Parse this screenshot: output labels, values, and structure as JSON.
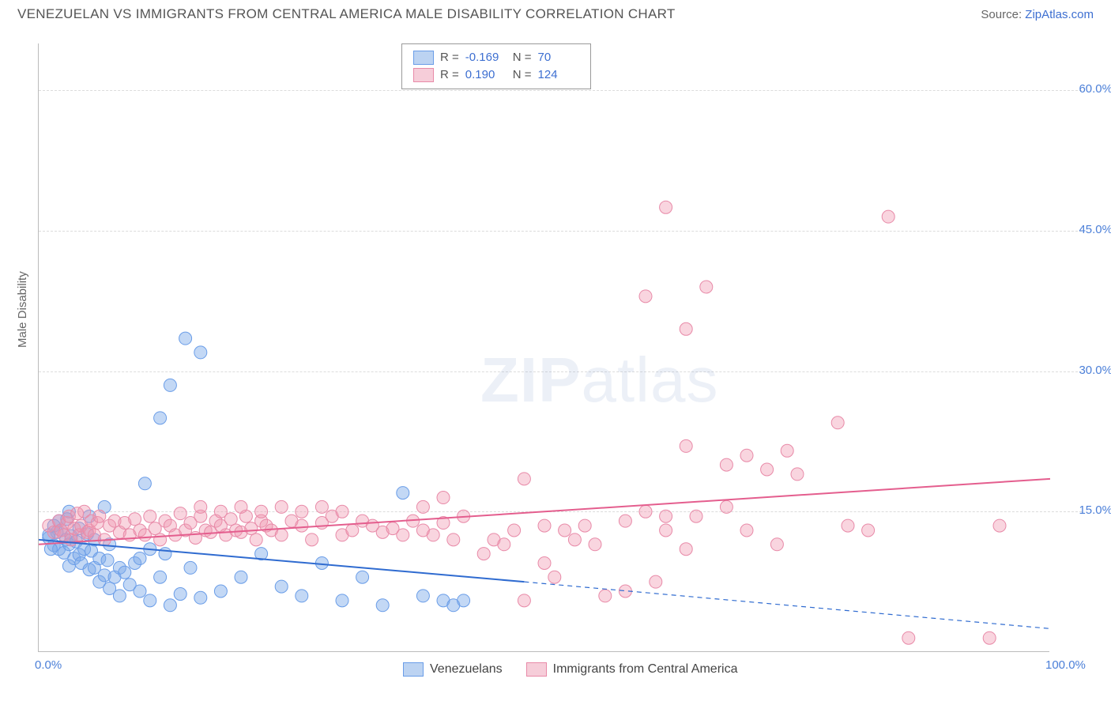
{
  "title": "VENEZUELAN VS IMMIGRANTS FROM CENTRAL AMERICA MALE DISABILITY CORRELATION CHART",
  "source_label": "Source:",
  "source_name": "ZipAtlas.com",
  "y_axis_title": "Male Disability",
  "watermark_a": "ZIP",
  "watermark_b": "atlas",
  "chart": {
    "type": "scatter",
    "xlim": [
      0,
      100
    ],
    "ylim": [
      0,
      65
    ],
    "y_ticks": [
      15,
      30,
      45,
      60
    ],
    "y_tick_labels": [
      "15.0%",
      "30.0%",
      "45.0%",
      "60.0%"
    ],
    "x_tick_labels": {
      "min": "0.0%",
      "max": "100.0%"
    },
    "grid_color": "#dcdcdc",
    "background_color": "#ffffff",
    "series": [
      {
        "name": "Venezuelans",
        "color_fill": "rgba(122,169,232,0.45)",
        "color_stroke": "#6a9de8",
        "marker_radius": 8,
        "trend": {
          "x1": 0,
          "y1": 12.0,
          "x2": 48,
          "y2": 7.5,
          "x3": 100,
          "y3": 2.5,
          "color": "#2f6bd0",
          "width": 2
        },
        "R_label": "R =",
        "R_value": "-0.169",
        "N_label": "N =",
        "N_value": "70",
        "swatch_fill": "#bcd3f2",
        "swatch_border": "#6a9de8",
        "points": [
          [
            1,
            12.2
          ],
          [
            1.5,
            11.4
          ],
          [
            1.8,
            12.8
          ],
          [
            2,
            11.0
          ],
          [
            2.2,
            13.0
          ],
          [
            2.5,
            10.6
          ],
          [
            2.7,
            12.0
          ],
          [
            3,
            11.5
          ],
          [
            3,
            9.2
          ],
          [
            3.2,
            12.4
          ],
          [
            3.5,
            10.0
          ],
          [
            3.7,
            11.8
          ],
          [
            4,
            10.4
          ],
          [
            4,
            13.2
          ],
          [
            4.2,
            9.5
          ],
          [
            4.5,
            11.0
          ],
          [
            4.8,
            12.6
          ],
          [
            5,
            8.8
          ],
          [
            5.2,
            10.8
          ],
          [
            5.5,
            9.0
          ],
          [
            5.5,
            12.0
          ],
          [
            6,
            7.5
          ],
          [
            6,
            10.0
          ],
          [
            6.5,
            8.2
          ],
          [
            6.8,
            9.8
          ],
          [
            7,
            6.8
          ],
          [
            7,
            11.5
          ],
          [
            7.5,
            8.0
          ],
          [
            8,
            9.0
          ],
          [
            8,
            6.0
          ],
          [
            8.5,
            8.5
          ],
          [
            9,
            7.2
          ],
          [
            9.5,
            9.5
          ],
          [
            10,
            6.5
          ],
          [
            10,
            10.0
          ],
          [
            11,
            5.5
          ],
          [
            11,
            11.0
          ],
          [
            12,
            8.0
          ],
          [
            12.5,
            10.5
          ],
          [
            13,
            5.0
          ],
          [
            14,
            6.2
          ],
          [
            15,
            9.0
          ],
          [
            16,
            5.8
          ],
          [
            18,
            6.5
          ],
          [
            10.5,
            18.0
          ],
          [
            12,
            25.0
          ],
          [
            13,
            28.5
          ],
          [
            14.5,
            33.5
          ],
          [
            16,
            32.0
          ],
          [
            5,
            14.5
          ],
          [
            6.5,
            15.5
          ],
          [
            20,
            8.0
          ],
          [
            22,
            10.5
          ],
          [
            24,
            7.0
          ],
          [
            26,
            6.0
          ],
          [
            28,
            9.5
          ],
          [
            30,
            5.5
          ],
          [
            32,
            8.0
          ],
          [
            34,
            5.0
          ],
          [
            36,
            17.0
          ],
          [
            38,
            6.0
          ],
          [
            40,
            5.5
          ],
          [
            41,
            5.0
          ],
          [
            42,
            5.5
          ],
          [
            2,
            14.0
          ],
          [
            3,
            15.0
          ],
          [
            1,
            12.5
          ],
          [
            1.2,
            11.0
          ],
          [
            1.5,
            13.5
          ],
          [
            2.8,
            14.2
          ]
        ]
      },
      {
        "name": "Immigrants from Central America",
        "color_fill": "rgba(240,150,175,0.40)",
        "color_stroke": "#e88aa8",
        "marker_radius": 8,
        "trend": {
          "x1": 0,
          "y1": 11.5,
          "x2": 100,
          "y2": 18.5,
          "color": "#e45e8e",
          "width": 2
        },
        "R_label": "R =",
        "R_value": "0.190",
        "N_label": "N =",
        "N_value": "124",
        "swatch_fill": "#f6cdd9",
        "swatch_border": "#e88aa8",
        "points": [
          [
            1,
            13.5
          ],
          [
            1.5,
            12.8
          ],
          [
            2,
            14.0
          ],
          [
            2.2,
            13.0
          ],
          [
            2.5,
            12.5
          ],
          [
            2.8,
            13.8
          ],
          [
            3,
            14.5
          ],
          [
            3.2,
            12.0
          ],
          [
            3.5,
            13.2
          ],
          [
            3.8,
            14.8
          ],
          [
            4,
            12.5
          ],
          [
            4.2,
            13.5
          ],
          [
            4.5,
            15.0
          ],
          [
            4.8,
            12.8
          ],
          [
            5,
            13.0
          ],
          [
            5.2,
            14.0
          ],
          [
            5.5,
            12.5
          ],
          [
            5.8,
            13.8
          ],
          [
            6,
            14.5
          ],
          [
            6.5,
            12.0
          ],
          [
            7,
            13.5
          ],
          [
            7.5,
            14.0
          ],
          [
            8,
            12.8
          ],
          [
            8.5,
            13.8
          ],
          [
            9,
            12.5
          ],
          [
            9.5,
            14.2
          ],
          [
            10,
            13.0
          ],
          [
            10.5,
            12.5
          ],
          [
            11,
            14.5
          ],
          [
            11.5,
            13.2
          ],
          [
            12,
            12.0
          ],
          [
            12.5,
            14.0
          ],
          [
            13,
            13.5
          ],
          [
            13.5,
            12.5
          ],
          [
            14,
            14.8
          ],
          [
            14.5,
            13.0
          ],
          [
            15,
            13.8
          ],
          [
            15.5,
            12.2
          ],
          [
            16,
            14.5
          ],
          [
            16.5,
            13.0
          ],
          [
            17,
            12.8
          ],
          [
            17.5,
            14.0
          ],
          [
            18,
            13.5
          ],
          [
            18.5,
            12.5
          ],
          [
            19,
            14.2
          ],
          [
            19.5,
            13.0
          ],
          [
            20,
            12.8
          ],
          [
            20.5,
            14.5
          ],
          [
            21,
            13.2
          ],
          [
            21.5,
            12.0
          ],
          [
            22,
            14.0
          ],
          [
            22.5,
            13.5
          ],
          [
            23,
            13.0
          ],
          [
            24,
            12.5
          ],
          [
            25,
            14.0
          ],
          [
            26,
            13.5
          ],
          [
            27,
            12.0
          ],
          [
            28,
            13.8
          ],
          [
            29,
            14.5
          ],
          [
            30,
            12.5
          ],
          [
            31,
            13.0
          ],
          [
            32,
            14.0
          ],
          [
            33,
            13.5
          ],
          [
            34,
            12.8
          ],
          [
            35,
            13.2
          ],
          [
            36,
            12.5
          ],
          [
            37,
            14.0
          ],
          [
            38,
            13.0
          ],
          [
            39,
            12.5
          ],
          [
            40,
            13.8
          ],
          [
            41,
            12.0
          ],
          [
            42,
            14.5
          ],
          [
            44,
            10.5
          ],
          [
            45,
            12.0
          ],
          [
            46,
            11.5
          ],
          [
            47,
            13.0
          ],
          [
            48,
            5.5
          ],
          [
            50,
            13.5
          ],
          [
            51,
            8.0
          ],
          [
            52,
            13.0
          ],
          [
            48,
            18.5
          ],
          [
            50,
            9.5
          ],
          [
            53,
            12.0
          ],
          [
            54,
            13.5
          ],
          [
            56,
            6.0
          ],
          [
            58,
            14.0
          ],
          [
            60,
            15.0
          ],
          [
            61,
            7.5
          ],
          [
            62,
            13.0
          ],
          [
            64,
            11.0
          ],
          [
            65,
            14.5
          ],
          [
            38,
            15.5
          ],
          [
            40,
            16.5
          ],
          [
            55,
            11.5
          ],
          [
            58,
            6.5
          ],
          [
            60,
            38.0
          ],
          [
            62,
            47.5
          ],
          [
            64,
            34.5
          ],
          [
            66,
            39.0
          ],
          [
            68,
            15.5
          ],
          [
            70,
            21.0
          ],
          [
            70,
            13.0
          ],
          [
            72,
            19.5
          ],
          [
            73,
            11.5
          ],
          [
            74,
            21.5
          ],
          [
            79,
            24.5
          ],
          [
            80,
            13.5
          ],
          [
            82,
            13.0
          ],
          [
            84,
            46.5
          ],
          [
            86,
            1.5
          ],
          [
            68,
            20.0
          ],
          [
            64,
            22.0
          ],
          [
            75,
            19.0
          ],
          [
            16,
            15.5
          ],
          [
            18,
            15.0
          ],
          [
            20,
            15.5
          ],
          [
            22,
            15.0
          ],
          [
            24,
            15.5
          ],
          [
            94,
            1.5
          ],
          [
            95,
            13.5
          ],
          [
            26,
            15.0
          ],
          [
            28,
            15.5
          ],
          [
            30,
            15.0
          ],
          [
            62,
            14.5
          ]
        ]
      }
    ]
  }
}
